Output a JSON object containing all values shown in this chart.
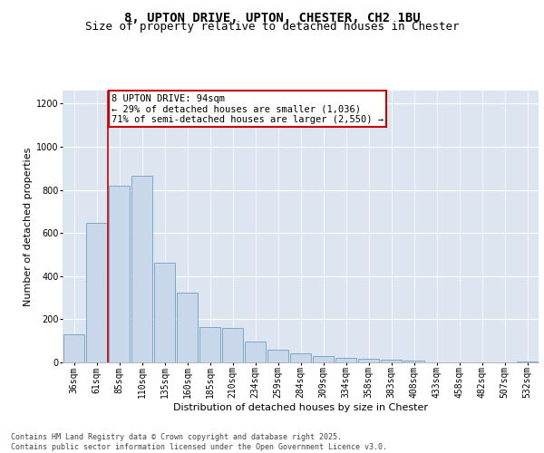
{
  "title": "8, UPTON DRIVE, UPTON, CHESTER, CH2 1BU",
  "subtitle": "Size of property relative to detached houses in Chester",
  "xlabel": "Distribution of detached houses by size in Chester",
  "ylabel": "Number of detached properties",
  "categories": [
    "36sqm",
    "61sqm",
    "85sqm",
    "110sqm",
    "135sqm",
    "160sqm",
    "185sqm",
    "210sqm",
    "234sqm",
    "259sqm",
    "284sqm",
    "309sqm",
    "334sqm",
    "358sqm",
    "383sqm",
    "408sqm",
    "433sqm",
    "458sqm",
    "482sqm",
    "507sqm",
    "532sqm"
  ],
  "values": [
    130,
    645,
    820,
    865,
    460,
    325,
    162,
    160,
    95,
    60,
    42,
    30,
    20,
    17,
    14,
    10,
    0,
    0,
    0,
    0,
    5
  ],
  "bar_color": "#c8d8ea",
  "bar_edge_color": "#7aaac8",
  "vline_x": 1.5,
  "vline_color": "#cc0000",
  "annotation_box_text": "8 UPTON DRIVE: 94sqm\n← 29% of detached houses are smaller (1,036)\n71% of semi-detached houses are larger (2,550) →",
  "annotation_box_color": "#cc0000",
  "annotation_box_facecolor": "white",
  "ylim": [
    0,
    1260
  ],
  "yticks": [
    0,
    200,
    400,
    600,
    800,
    1000,
    1200
  ],
  "background_color": "#dde6f0",
  "grid_color": "white",
  "footer_text": "Contains HM Land Registry data © Crown copyright and database right 2025.\nContains public sector information licensed under the Open Government Licence v3.0.",
  "title_fontsize": 10,
  "subtitle_fontsize": 9,
  "xlabel_fontsize": 8,
  "ylabel_fontsize": 8,
  "tick_fontsize": 7,
  "annotation_fontsize": 7.5,
  "footer_fontsize": 6
}
